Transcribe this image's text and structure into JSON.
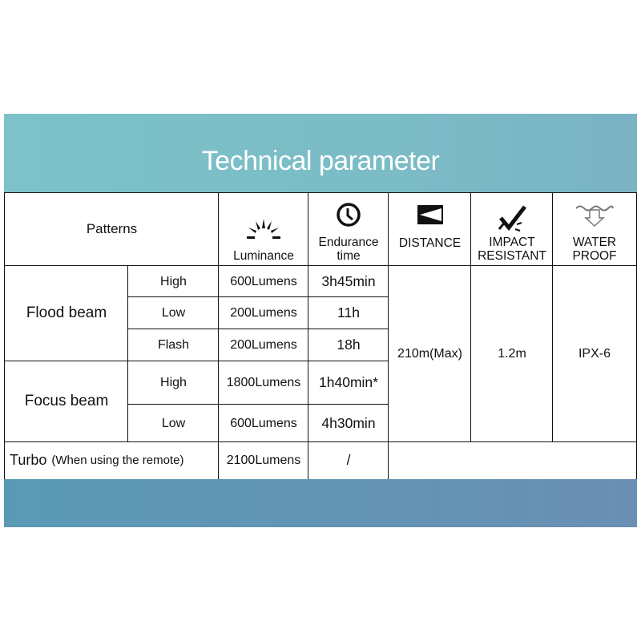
{
  "title": "Technical parameter",
  "colors": {
    "top_band": "#7cc2c8",
    "bottom_band": "#6a8fb2"
  },
  "headers": {
    "patterns": "Patterns",
    "luminance": {
      "label": "Luminance",
      "icon": "sun-rays-icon"
    },
    "endurance": {
      "label1": "Endurance",
      "label2": "time",
      "icon": "clock-icon"
    },
    "distance": {
      "label": "DISTANCE",
      "icon": "distance-beam-icon"
    },
    "impact": {
      "label1": "IMPACT",
      "label2": "RESISTANT",
      "icon": "impact-check-icon"
    },
    "water": {
      "label1": "WATER",
      "label2": "PROOF",
      "icon": "water-drop-arrow-icon"
    }
  },
  "flood": {
    "label": "Flood  beam",
    "rows": [
      {
        "mode": "High",
        "lum": "600Lumens",
        "time": "3h45min"
      },
      {
        "mode": "Low",
        "lum": "200Lumens",
        "time": "11h"
      },
      {
        "mode": "Flash",
        "lum": "200Lumens",
        "time": "18h"
      }
    ]
  },
  "focus": {
    "label": "Focus  beam",
    "rows": [
      {
        "mode": "High",
        "lum": "1800Lumens",
        "time": "1h40min*"
      },
      {
        "mode": "Low",
        "lum": "600Lumens",
        "time": "4h30min"
      }
    ]
  },
  "turbo": {
    "label": "Turbo",
    "note": "(When using the remote)",
    "lum": "2100Lumens",
    "time": "/"
  },
  "distance": "210m(Max)",
  "impact": "1.2m",
  "waterproof": "IPX-6"
}
